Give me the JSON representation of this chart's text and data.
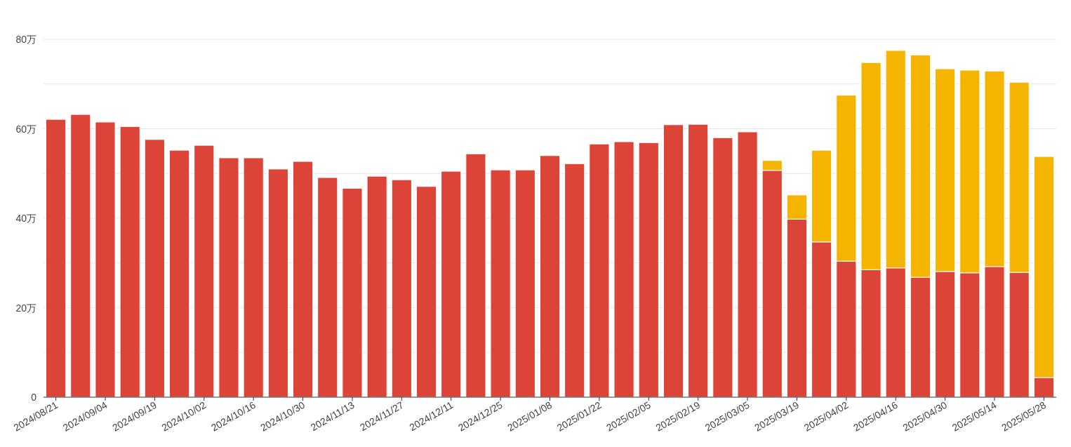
{
  "chart_data": {
    "type": "bar",
    "stacked": true,
    "categories": [
      "2024/08/21",
      null,
      "2024/09/04",
      null,
      "2024/09/19",
      null,
      "2024/10/02",
      null,
      "2024/10/16",
      null,
      "2024/10/30",
      null,
      "2024/11/13",
      null,
      "2024/11/27",
      null,
      "2024/12/11",
      null,
      "2024/12/25",
      null,
      "2025/01/08",
      null,
      "2025/01/22",
      null,
      "2025/02/05",
      null,
      "2025/02/19",
      null,
      "2025/03/05",
      null,
      "2025/03/19",
      null,
      "2025/04/02",
      null,
      "2025/04/16",
      null,
      "2025/04/30",
      null,
      "2025/05/14",
      null,
      "2025/05/28"
    ],
    "series": [
      {
        "color": "#db4437",
        "values": [
          62.1,
          63.2,
          61.5,
          60.5,
          57.6,
          55.2,
          56.3,
          53.5,
          53.5,
          51.0,
          52.7,
          49.1,
          46.7,
          49.4,
          48.6,
          47.1,
          50.5,
          54.4,
          50.8,
          50.8,
          54.0,
          52.2,
          56.6,
          57.1,
          56.9,
          60.9,
          61.0,
          58.0,
          59.3,
          50.7,
          39.8,
          34.7,
          30.4,
          28.5,
          28.9,
          26.8,
          28.1,
          27.8,
          29.2,
          27.9,
          4.4
        ]
      },
      {
        "color": "#f4b400",
        "values": [
          null,
          null,
          null,
          null,
          null,
          null,
          null,
          null,
          null,
          null,
          null,
          null,
          null,
          null,
          null,
          null,
          null,
          null,
          null,
          null,
          null,
          null,
          null,
          null,
          null,
          null,
          null,
          null,
          null,
          2.2,
          5.4,
          20.5,
          37.1,
          46.3,
          48.6,
          49.7,
          45.3,
          45.3,
          43.7,
          42.5,
          49.4
        ]
      }
    ],
    "ylim": [
      0,
      80
    ],
    "yticks": [
      0,
      {
        "value": 10,
        "label": null
      },
      {
        "value": 20,
        "label": "20万"
      },
      {
        "value": 30,
        "label": null
      },
      {
        "value": 40,
        "label": "40万"
      },
      {
        "value": 50,
        "label": null
      },
      {
        "value": 60,
        "label": "60万"
      },
      {
        "value": 70,
        "label": null
      },
      {
        "value": 80,
        "label": "80万"
      }
    ],
    "grid": "y"
  }
}
